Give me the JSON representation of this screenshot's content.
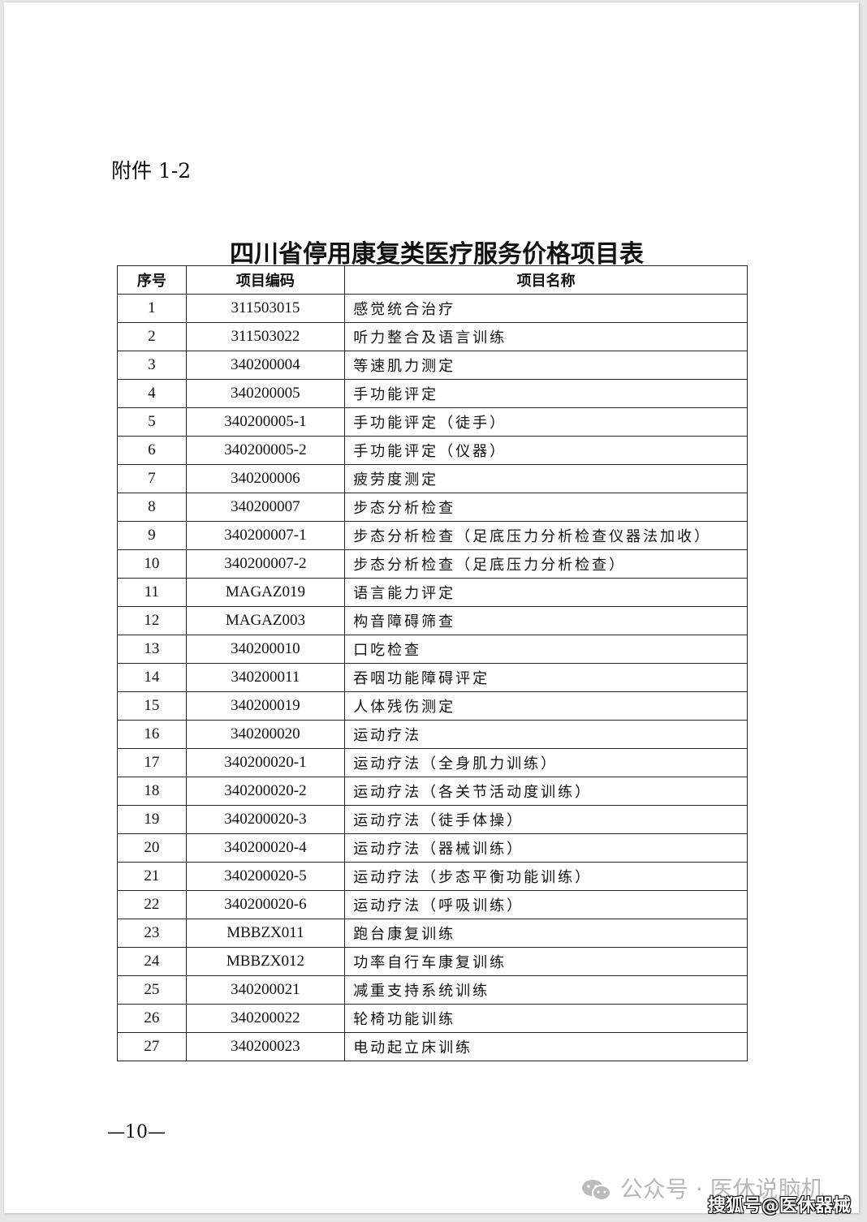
{
  "attachment_label": "附件 1-2",
  "title": "四川省停用康复类医疗服务价格项目表",
  "table": {
    "headers": [
      "序号",
      "项目编码",
      "项目名称"
    ],
    "rows": [
      [
        "1",
        "311503015",
        "感觉统合治疗"
      ],
      [
        "2",
        "311503022",
        "听力整合及语言训练"
      ],
      [
        "3",
        "340200004",
        "等速肌力测定"
      ],
      [
        "4",
        "340200005",
        "手功能评定"
      ],
      [
        "5",
        "340200005-1",
        "手功能评定（徒手）"
      ],
      [
        "6",
        "340200005-2",
        "手功能评定（仪器）"
      ],
      [
        "7",
        "340200006",
        "疲劳度测定"
      ],
      [
        "8",
        "340200007",
        "步态分析检查"
      ],
      [
        "9",
        "340200007-1",
        "步态分析检查（足底压力分析检查仪器法加收）"
      ],
      [
        "10",
        "340200007-2",
        "步态分析检查（足底压力分析检查）"
      ],
      [
        "11",
        "MAGAZ019",
        "语言能力评定"
      ],
      [
        "12",
        "MAGAZ003",
        "构音障碍筛查"
      ],
      [
        "13",
        "340200010",
        "口吃检查"
      ],
      [
        "14",
        "340200011",
        "吞咽功能障碍评定"
      ],
      [
        "15",
        "340200019",
        "人体残伤测定"
      ],
      [
        "16",
        "340200020",
        "运动疗法"
      ],
      [
        "17",
        "340200020-1",
        "运动疗法（全身肌力训练）"
      ],
      [
        "18",
        "340200020-2",
        "运动疗法（各关节活动度训练）"
      ],
      [
        "19",
        "340200020-3",
        "运动疗法（徒手体操）"
      ],
      [
        "20",
        "340200020-4",
        "运动疗法（器械训练）"
      ],
      [
        "21",
        "340200020-5",
        "运动疗法（步态平衡功能训练）"
      ],
      [
        "22",
        "340200020-6",
        "运动疗法（呼吸训练）"
      ],
      [
        "23",
        "MBBZX011",
        "跑台康复训练"
      ],
      [
        "24",
        "MBBZX012",
        "功率自行车康复训练"
      ],
      [
        "25",
        "340200021",
        "减重支持系统训练"
      ],
      [
        "26",
        "340200022",
        "轮椅功能训练"
      ],
      [
        "27",
        "340200023",
        "电动起立床训练"
      ]
    ]
  },
  "page_number": "—10—",
  "watermarks": {
    "wechat": "公众号 · 医休说脑机",
    "wechat_icon": "wechat-icon",
    "sohu": "搜狐号@医休器械"
  }
}
